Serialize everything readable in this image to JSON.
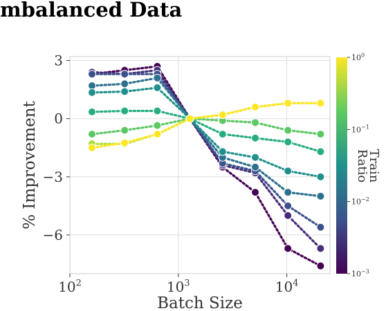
{
  "chart_data": {
    "type": "line",
    "title": "mbalanced Data",
    "xlabel": "Batch Size",
    "ylabel": "% Improvement",
    "x_scale": "log",
    "xlim": [
      100,
      25000
    ],
    "ylim": [
      -8,
      3.2
    ],
    "x_ticks": [
      {
        "value": 100,
        "base": "10",
        "exp": "2"
      },
      {
        "value": 1000,
        "base": "10",
        "exp": "3"
      },
      {
        "value": 10000,
        "base": "10",
        "exp": "4"
      }
    ],
    "y_ticks": [
      {
        "value": 3,
        "label": "3"
      },
      {
        "value": 0,
        "label": "0"
      },
      {
        "value": -3,
        "label": "−3"
      },
      {
        "value": -6,
        "label": "−6"
      }
    ],
    "grid": true,
    "colorbar": {
      "label_lines": [
        "Train",
        "Ratio"
      ],
      "scale": "log",
      "range": [
        0.001,
        1
      ],
      "ticks": [
        {
          "value": 1,
          "base": "10",
          "exp": "0"
        },
        {
          "value": 0.1,
          "base": "10",
          "exp": "−1"
        },
        {
          "value": 0.01,
          "base": "10",
          "exp": "−2"
        },
        {
          "value": 0.001,
          "base": "10",
          "exp": "−3"
        }
      ],
      "colormap": [
        "#440154",
        "#3b528b",
        "#21918c",
        "#5ec962",
        "#fde725"
      ]
    },
    "x": [
      160,
      320,
      640,
      1280,
      2560,
      5120,
      10240,
      20480
    ],
    "series": [
      {
        "ratio": 0.001,
        "color": "#440154",
        "values": [
          2.3,
          2.5,
          2.7,
          0,
          -2.5,
          -3.8,
          -6.7,
          -7.6
        ]
      },
      {
        "ratio": 0.002,
        "color": "#472c7a",
        "values": [
          2.4,
          2.3,
          2.5,
          0,
          -2.4,
          -2.8,
          -5.0,
          -6.7
        ]
      },
      {
        "ratio": 0.004,
        "color": "#3b518b",
        "values": [
          2.3,
          2.3,
          2.3,
          0,
          -2.3,
          -2.7,
          -4.5,
          -5.6
        ]
      },
      {
        "ratio": 0.008,
        "color": "#2c718e",
        "values": [
          1.7,
          1.8,
          2.1,
          0,
          -2.0,
          -2.5,
          -3.8,
          -4.0
        ]
      },
      {
        "ratio": 0.016,
        "color": "#21908d",
        "values": [
          1.35,
          1.4,
          1.6,
          0,
          -1.7,
          -2.0,
          -2.7,
          -3.0
        ]
      },
      {
        "ratio": 0.032,
        "color": "#27ad81",
        "values": [
          0.35,
          0.4,
          0.4,
          0,
          -0.8,
          -1.0,
          -1.2,
          -1.7
        ]
      },
      {
        "ratio": 0.064,
        "color": "#5cc863",
        "values": [
          -0.8,
          -0.6,
          -0.35,
          0,
          -0.1,
          -0.2,
          -0.6,
          -0.8
        ]
      },
      {
        "ratio": 0.25,
        "color": "#aadc32",
        "values": [
          -1.3,
          -1.3,
          -0.8,
          0,
          0.2,
          0.6,
          0.8,
          0.8
        ]
      },
      {
        "ratio": 1.0,
        "color": "#fde725",
        "values": [
          -1.5,
          -1.25,
          -0.8,
          0,
          0.2,
          0.6,
          0.8,
          0.8
        ]
      }
    ]
  }
}
